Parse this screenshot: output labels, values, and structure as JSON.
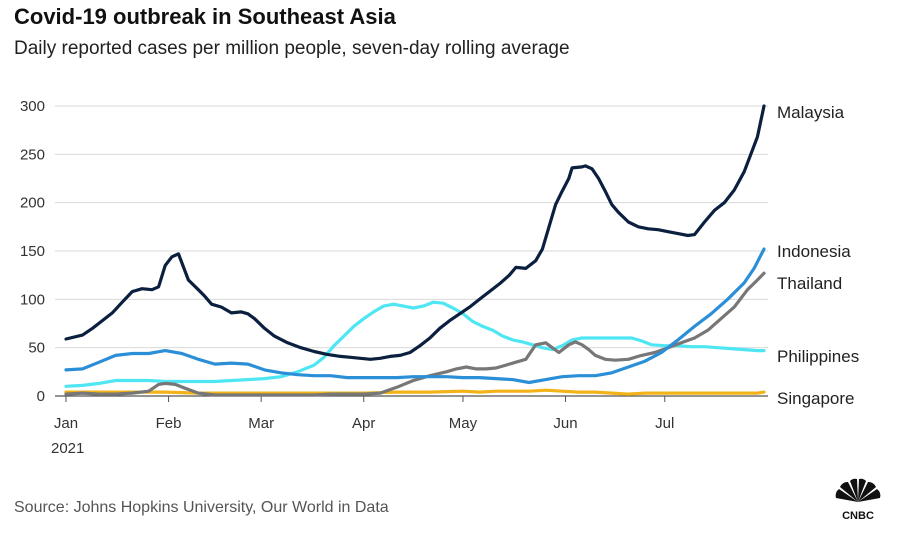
{
  "header": {
    "title": "Covid-19 outbreak in Southeast Asia",
    "subtitle": "Daily reported cases per million people, seven-day rolling average"
  },
  "footer": {
    "source": "Source: Johns Hopkins University, Our World in Data",
    "logo_text": "CNBC"
  },
  "chart_data": {
    "type": "line",
    "title": "Covid-19 outbreak in Southeast Asia",
    "subtitle": "Daily reported cases per million people, seven-day rolling average",
    "xlabel": "",
    "ylabel": "",
    "ylim": [
      0,
      300
    ],
    "yticks": [
      "0",
      "50",
      "100",
      "150",
      "200",
      "250",
      "300"
    ],
    "xticks": [
      {
        "label": "Jan",
        "sublabel": "2021",
        "day": 0
      },
      {
        "label": "Feb",
        "day": 31
      },
      {
        "label": "Mar",
        "day": 59
      },
      {
        "label": "Apr",
        "day": 90
      },
      {
        "label": "May",
        "day": 120
      },
      {
        "label": "Jun",
        "day": 151
      },
      {
        "label": "Jul",
        "day": 181
      }
    ],
    "grid": "horizontal",
    "legend": "direct labels at line ends",
    "series": [
      {
        "name": "Malaysia",
        "color": "#0b1f3f",
        "points": [
          [
            0,
            59
          ],
          [
            5,
            63
          ],
          [
            8,
            70
          ],
          [
            11,
            78
          ],
          [
            14,
            86
          ],
          [
            17,
            97
          ],
          [
            20,
            108
          ],
          [
            23,
            111
          ],
          [
            26,
            110
          ],
          [
            28,
            113
          ],
          [
            30,
            135
          ],
          [
            32,
            144
          ],
          [
            34,
            147
          ],
          [
            37,
            120
          ],
          [
            40,
            110
          ],
          [
            42,
            103
          ],
          [
            44,
            95
          ],
          [
            47,
            92
          ],
          [
            50,
            86
          ],
          [
            53,
            87
          ],
          [
            55,
            85
          ],
          [
            57,
            80
          ],
          [
            60,
            70
          ],
          [
            63,
            62
          ],
          [
            67,
            55
          ],
          [
            71,
            50
          ],
          [
            75,
            46
          ],
          [
            79,
            43
          ],
          [
            83,
            41
          ],
          [
            86,
            40
          ],
          [
            89,
            39
          ],
          [
            92,
            38
          ],
          [
            95,
            39
          ],
          [
            98,
            41
          ],
          [
            101,
            42
          ],
          [
            104,
            45
          ],
          [
            107,
            52
          ],
          [
            110,
            60
          ],
          [
            113,
            70
          ],
          [
            116,
            78
          ],
          [
            119,
            85
          ],
          [
            122,
            92
          ],
          [
            125,
            100
          ],
          [
            128,
            108
          ],
          [
            131,
            116
          ],
          [
            134,
            125
          ],
          [
            136,
            133
          ],
          [
            139,
            132
          ],
          [
            142,
            140
          ],
          [
            144,
            152
          ],
          [
            146,
            175
          ],
          [
            148,
            198
          ],
          [
            150,
            212
          ],
          [
            152,
            225
          ],
          [
            153,
            236
          ],
          [
            156,
            237
          ],
          [
            157,
            238
          ],
          [
            159,
            235
          ],
          [
            161,
            225
          ],
          [
            163,
            212
          ],
          [
            165,
            198
          ],
          [
            167,
            190
          ],
          [
            170,
            180
          ],
          [
            173,
            175
          ],
          [
            176,
            173
          ],
          [
            179,
            172
          ],
          [
            182,
            170
          ],
          [
            185,
            168
          ],
          [
            188,
            166
          ],
          [
            190,
            167
          ],
          [
            193,
            180
          ],
          [
            196,
            192
          ],
          [
            199,
            200
          ],
          [
            202,
            213
          ],
          [
            205,
            232
          ],
          [
            207,
            250
          ],
          [
            209,
            268
          ],
          [
            211,
            300
          ]
        ]
      },
      {
        "name": "Indonesia",
        "color": "#2b8fd8",
        "points": [
          [
            0,
            27
          ],
          [
            5,
            28
          ],
          [
            10,
            35
          ],
          [
            15,
            42
          ],
          [
            20,
            44
          ],
          [
            25,
            44
          ],
          [
            30,
            47
          ],
          [
            35,
            44
          ],
          [
            40,
            38
          ],
          [
            45,
            33
          ],
          [
            50,
            34
          ],
          [
            55,
            33
          ],
          [
            60,
            27
          ],
          [
            65,
            24
          ],
          [
            70,
            22
          ],
          [
            75,
            21
          ],
          [
            80,
            21
          ],
          [
            85,
            19
          ],
          [
            90,
            19
          ],
          [
            95,
            19
          ],
          [
            100,
            19
          ],
          [
            105,
            20
          ],
          [
            110,
            20
          ],
          [
            115,
            20
          ],
          [
            120,
            19
          ],
          [
            125,
            19
          ],
          [
            130,
            18
          ],
          [
            135,
            17
          ],
          [
            140,
            14
          ],
          [
            145,
            17
          ],
          [
            150,
            20
          ],
          [
            155,
            21
          ],
          [
            160,
            21
          ],
          [
            165,
            24
          ],
          [
            170,
            30
          ],
          [
            175,
            36
          ],
          [
            180,
            45
          ],
          [
            185,
            58
          ],
          [
            190,
            72
          ],
          [
            195,
            85
          ],
          [
            200,
            100
          ],
          [
            205,
            117
          ],
          [
            208,
            132
          ],
          [
            211,
            152
          ]
        ]
      },
      {
        "name": "Thailand",
        "color": "#777777",
        "points": [
          [
            0,
            2
          ],
          [
            5,
            3
          ],
          [
            10,
            2
          ],
          [
            15,
            2
          ],
          [
            20,
            3
          ],
          [
            25,
            5
          ],
          [
            28,
            12
          ],
          [
            30,
            13
          ],
          [
            33,
            12
          ],
          [
            36,
            8
          ],
          [
            40,
            3
          ],
          [
            45,
            1
          ],
          [
            50,
            1
          ],
          [
            55,
            1
          ],
          [
            60,
            1
          ],
          [
            65,
            1
          ],
          [
            70,
            1
          ],
          [
            75,
            1
          ],
          [
            80,
            2
          ],
          [
            85,
            2
          ],
          [
            90,
            2
          ],
          [
            95,
            3
          ],
          [
            100,
            9
          ],
          [
            105,
            16
          ],
          [
            110,
            21
          ],
          [
            115,
            25
          ],
          [
            118,
            28
          ],
          [
            121,
            30
          ],
          [
            124,
            28
          ],
          [
            127,
            28
          ],
          [
            130,
            29
          ],
          [
            133,
            32
          ],
          [
            136,
            35
          ],
          [
            139,
            38
          ],
          [
            142,
            53
          ],
          [
            145,
            55
          ],
          [
            147,
            50
          ],
          [
            149,
            45
          ],
          [
            152,
            53
          ],
          [
            154,
            56
          ],
          [
            156,
            53
          ],
          [
            158,
            48
          ],
          [
            160,
            42
          ],
          [
            163,
            38
          ],
          [
            166,
            37
          ],
          [
            170,
            38
          ],
          [
            174,
            42
          ],
          [
            178,
            45
          ],
          [
            182,
            50
          ],
          [
            186,
            55
          ],
          [
            190,
            60
          ],
          [
            194,
            68
          ],
          [
            198,
            80
          ],
          [
            202,
            92
          ],
          [
            206,
            110
          ],
          [
            209,
            120
          ],
          [
            211,
            127
          ]
        ]
      },
      {
        "name": "Philippines",
        "color": "#4fe6f4",
        "points": [
          [
            0,
            10
          ],
          [
            5,
            11
          ],
          [
            10,
            13
          ],
          [
            15,
            16
          ],
          [
            20,
            16
          ],
          [
            25,
            16
          ],
          [
            30,
            15
          ],
          [
            35,
            15
          ],
          [
            40,
            15
          ],
          [
            45,
            15
          ],
          [
            50,
            16
          ],
          [
            55,
            17
          ],
          [
            60,
            18
          ],
          [
            65,
            20
          ],
          [
            70,
            25
          ],
          [
            75,
            32
          ],
          [
            78,
            40
          ],
          [
            81,
            52
          ],
          [
            84,
            62
          ],
          [
            87,
            72
          ],
          [
            90,
            80
          ],
          [
            93,
            87
          ],
          [
            96,
            93
          ],
          [
            99,
            95
          ],
          [
            102,
            93
          ],
          [
            105,
            91
          ],
          [
            108,
            93
          ],
          [
            111,
            97
          ],
          [
            114,
            96
          ],
          [
            117,
            91
          ],
          [
            120,
            85
          ],
          [
            123,
            77
          ],
          [
            126,
            72
          ],
          [
            129,
            68
          ],
          [
            132,
            62
          ],
          [
            135,
            58
          ],
          [
            138,
            56
          ],
          [
            141,
            53
          ],
          [
            144,
            50
          ],
          [
            147,
            48
          ],
          [
            150,
            52
          ],
          [
            153,
            58
          ],
          [
            156,
            60
          ],
          [
            159,
            60
          ],
          [
            162,
            60
          ],
          [
            165,
            60
          ],
          [
            168,
            60
          ],
          [
            171,
            60
          ],
          [
            174,
            57
          ],
          [
            177,
            53
          ],
          [
            181,
            52
          ],
          [
            185,
            52
          ],
          [
            189,
            51
          ],
          [
            193,
            51
          ],
          [
            197,
            50
          ],
          [
            201,
            49
          ],
          [
            205,
            48
          ],
          [
            209,
            47
          ],
          [
            211,
            47
          ]
        ]
      },
      {
        "name": "Singapore",
        "color": "#f2b318",
        "points": [
          [
            0,
            4
          ],
          [
            10,
            4
          ],
          [
            20,
            4
          ],
          [
            30,
            4
          ],
          [
            40,
            3
          ],
          [
            50,
            3
          ],
          [
            60,
            3
          ],
          [
            70,
            3
          ],
          [
            80,
            3
          ],
          [
            90,
            3
          ],
          [
            100,
            4
          ],
          [
            110,
            4
          ],
          [
            120,
            5
          ],
          [
            125,
            4
          ],
          [
            130,
            5
          ],
          [
            135,
            5
          ],
          [
            140,
            5
          ],
          [
            145,
            6
          ],
          [
            150,
            5
          ],
          [
            155,
            4
          ],
          [
            160,
            4
          ],
          [
            165,
            3
          ],
          [
            170,
            2
          ],
          [
            175,
            3
          ],
          [
            180,
            3
          ],
          [
            185,
            3
          ],
          [
            190,
            3
          ],
          [
            195,
            3
          ],
          [
            200,
            3
          ],
          [
            205,
            3
          ],
          [
            209,
            3
          ],
          [
            211,
            4
          ]
        ]
      }
    ]
  }
}
